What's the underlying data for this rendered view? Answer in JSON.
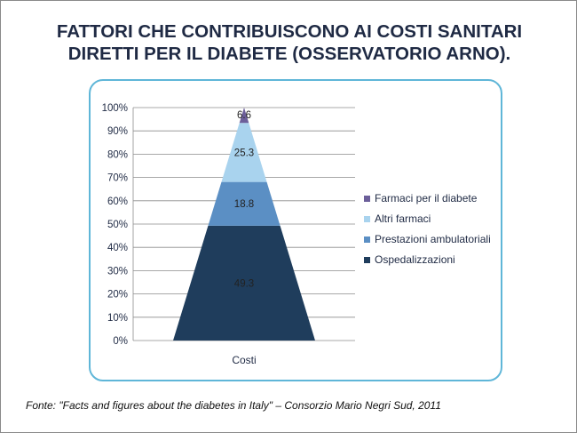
{
  "slide": {
    "title_line1": "FATTORI CHE CONTRIBUISCONO AI COSTI SANITARI",
    "title_line2": "DIRETTI PER IL DIABETE (OSSERVATORIO ARNO).",
    "source": "Fonte: \"Facts and figures about the diabetes in Italy\" – Consorzio Mario Negri Sud, 2011"
  },
  "colors": {
    "frame": "#5fb6d8",
    "grid": "#8c8c8c",
    "text": "#1f2a44"
  },
  "chart_data": {
    "type": "bar",
    "stacked": true,
    "shape": "pyramid",
    "categories": [
      "Costi"
    ],
    "series": [
      {
        "name": "Ospedalizzazioni",
        "values": [
          49.3
        ],
        "color": "#1f3d5c",
        "label": "49.3"
      },
      {
        "name": "Prestazioni ambulatoriali",
        "values": [
          18.8
        ],
        "color": "#5b8fc4",
        "label": "18.8"
      },
      {
        "name": "Altri farmaci",
        "values": [
          25.3
        ],
        "color": "#a9d3ee",
        "label": "25.3"
      },
      {
        "name": "Farmaci per il diabete",
        "values": [
          6.6
        ],
        "color": "#6c5f9a",
        "label": "6.6"
      }
    ],
    "legend_order": [
      "Farmaci per il diabete",
      "Altri farmaci",
      "Prestazioni ambulatoriali",
      "Ospedalizzazioni"
    ],
    "ylim": [
      0,
      100
    ],
    "yticks": [
      "0%",
      "10%",
      "20%",
      "30%",
      "40%",
      "50%",
      "60%",
      "70%",
      "80%",
      "90%",
      "100%"
    ],
    "grid": true,
    "legend_position": "right"
  }
}
